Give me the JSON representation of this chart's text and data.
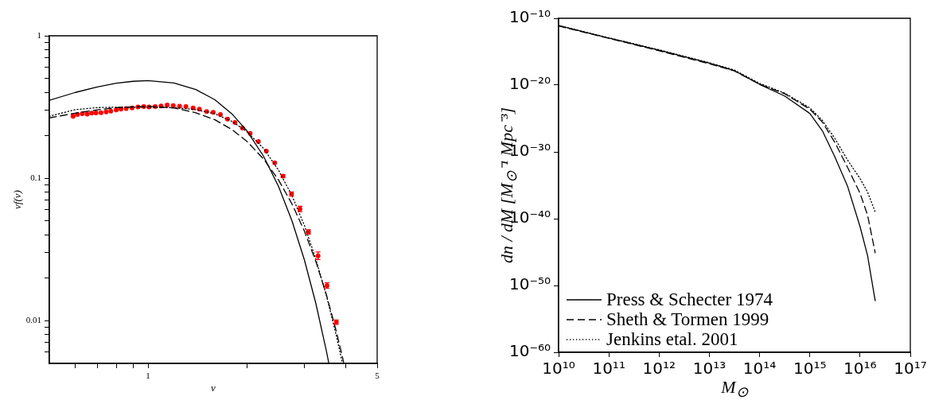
{
  "chart_data": [
    {
      "type": "line",
      "xlabel": "ν",
      "ylabel": "νf(ν)",
      "log": "xy",
      "grid": false,
      "legend": false,
      "marker": "none",
      "xlim": [
        0.5,
        5
      ],
      "xticks": [
        {
          "value": 0.6,
          "label": null
        },
        {
          "value": 0.7,
          "label": null
        },
        {
          "value": 0.8,
          "label": null
        },
        {
          "value": 0.9,
          "label": null
        },
        1,
        {
          "value": 2,
          "label": null
        },
        {
          "value": 3,
          "label": null
        },
        {
          "value": 4,
          "label": null
        },
        5
      ],
      "ylim": [
        0.005,
        1
      ],
      "yticks": [
        {
          "value": 0.006,
          "label": null
        },
        {
          "value": 0.007,
          "label": null
        },
        {
          "value": 0.008,
          "label": null
        },
        {
          "value": 0.009,
          "label": null
        },
        0.01,
        {
          "value": 0.02,
          "label": null
        },
        {
          "value": 0.03,
          "label": null
        },
        {
          "value": 0.04,
          "label": null
        },
        {
          "value": 0.05,
          "label": null
        },
        {
          "value": 0.06,
          "label": null
        },
        {
          "value": 0.07,
          "label": null
        },
        {
          "value": 0.08,
          "label": null
        },
        {
          "value": 0.09,
          "label": null
        },
        0.1,
        {
          "value": 0.2,
          "label": null
        },
        {
          "value": 0.3,
          "label": null
        },
        {
          "value": 0.4,
          "label": null
        },
        {
          "value": 0.5,
          "label": null
        },
        {
          "value": 0.6,
          "label": null
        },
        {
          "value": 0.7,
          "label": null
        },
        {
          "value": 0.8,
          "label": null
        },
        {
          "value": 0.9,
          "label": null
        },
        1
      ],
      "series": [
        {
          "type": "line",
          "color": "#000000",
          "line_style": "solid",
          "x": [
            0.5,
            0.6,
            0.7,
            0.8,
            0.9,
            1,
            1.2,
            1.4,
            1.6,
            1.8,
            2,
            2.25,
            2.5,
            2.75,
            3,
            3.25,
            3.5,
            3.56
          ],
          "values": [
            0.352,
            0.4,
            0.437,
            0.464,
            0.479,
            0.484,
            0.466,
            0.419,
            0.355,
            0.284,
            0.216,
            0.143,
            0.0877,
            0.05,
            0.0266,
            0.0132,
            0.00611,
            0.00502
          ]
        },
        {
          "type": "line",
          "color": "#000000",
          "line_style": "dashed",
          "x": [
            0.5,
            0.6,
            0.7,
            0.8,
            1,
            1.2,
            1.4,
            1.6,
            1.8,
            2,
            2.25,
            2.5,
            2.75,
            3,
            3.25,
            3.5,
            3.75,
            3.9,
            3.95
          ],
          "values": [
            0.265,
            0.286,
            0.302,
            0.313,
            0.32,
            0.311,
            0.288,
            0.257,
            0.22,
            0.182,
            0.1365,
            0.0973,
            0.0658,
            0.0424,
            0.026,
            0.0152,
            0.00844,
            0.0058,
            0.0051
          ]
        },
        {
          "type": "line",
          "color": "#000000",
          "line_style": "dotted",
          "x": [
            0.5,
            0.6,
            0.7,
            0.8,
            1,
            1.2,
            1.4,
            1.6,
            1.8,
            2,
            2.25,
            2.5,
            2.75,
            3,
            3.25,
            3.5,
            3.75,
            3.92
          ],
          "values": [
            0.272,
            0.303,
            0.313,
            0.315,
            0.315,
            0.313,
            0.303,
            0.283,
            0.251,
            0.213,
            0.162,
            0.114,
            0.0752,
            0.0465,
            0.0271,
            0.015,
            0.00791,
            0.005
          ]
        },
        {
          "type": "scatter",
          "color": "#ff0000",
          "marker": "circle",
          "x": [
            0.591,
            0.609,
            0.63,
            0.652,
            0.673,
            0.694,
            0.719,
            0.745,
            0.77,
            0.8,
            0.827,
            0.858,
            0.894,
            0.932,
            0.971,
            1.007,
            1.052,
            1.096,
            1.144,
            1.194,
            1.248,
            1.305,
            1.373,
            1.435,
            1.51,
            1.581,
            1.663,
            1.748,
            1.842,
            1.941,
            2.049,
            2.171,
            2.296,
            2.436,
            2.581,
            2.74,
            2.908,
            3.087,
            3.301,
            3.516,
            3.753
          ],
          "values": [
            0.272,
            0.28,
            0.284,
            0.282,
            0.286,
            0.287,
            0.288,
            0.292,
            0.296,
            0.301,
            0.305,
            0.308,
            0.311,
            0.316,
            0.318,
            0.316,
            0.318,
            0.321,
            0.327,
            0.324,
            0.32,
            0.318,
            0.311,
            0.305,
            0.294,
            0.29,
            0.28,
            0.26,
            0.246,
            0.225,
            0.206,
            0.181,
            0.155,
            0.128,
            0.1035,
            0.0773,
            0.0608,
            0.0419,
            0.0285,
            0.0176,
            0.00975
          ],
          "errors": [
            null,
            null,
            null,
            null,
            null,
            null,
            null,
            null,
            null,
            null,
            null,
            null,
            null,
            null,
            null,
            null,
            null,
            null,
            null,
            null,
            null,
            null,
            null,
            null,
            null,
            null,
            null,
            null,
            null,
            null,
            null,
            null,
            null,
            null,
            [
              0.101,
              0.106
            ],
            [
              0.0747,
              0.08
            ],
            [
              0.0582,
              0.0635
            ],
            [
              0.0405,
              0.0434
            ],
            [
              0.0268,
              0.0303
            ],
            [
              0.0168,
              0.0184
            ],
            [
              0.0094,
              0.0101
            ]
          ]
        }
      ]
    },
    {
      "type": "line",
      "xlabel": "M$_{⊙}$",
      "ylabel": "dn / dM  [M$_{⊙}$⁻¹ Mpc⁻³]",
      "log": "xy",
      "grid": false,
      "legend": "bottom left",
      "marker": "none",
      "xlim": [
        10000000000.0,
        1e+17
      ],
      "xticks": [
        {
          "value": 10000000000.0,
          "label": "10¹⁰"
        },
        {
          "value": 100000000000.0,
          "label": "10¹¹"
        },
        {
          "value": 1000000000000.0,
          "label": "10¹²"
        },
        {
          "value": 10000000000000.0,
          "label": "10¹³"
        },
        {
          "value": 100000000000000.0,
          "label": "10¹⁴"
        },
        {
          "value": 1000000000000000.0,
          "label": "10¹⁵"
        },
        {
          "value": 1e+16,
          "label": "10¹⁶"
        },
        {
          "value": 1e+17,
          "label": "10¹⁷"
        }
      ],
      "ylim": [
        1e-60,
        1e-10
      ],
      "yticks": [
        {
          "value": 1e-60,
          "label": "10⁻⁶⁰"
        },
        {
          "value": 1e-50,
          "label": "10⁻⁵⁰"
        },
        {
          "value": 1e-40,
          "label": "10⁻⁴⁰"
        },
        {
          "value": 1e-30,
          "label": "10⁻³⁰"
        },
        {
          "value": 1e-20,
          "label": "10⁻²⁰"
        },
        {
          "value": 1e-10,
          "label": "10⁻¹⁰"
        }
      ],
      "x": [
        10000000000.0,
        100000000000.0,
        1000000000000.0,
        10000000000000.0,
        31600000000000.0,
        100000000000000.0,
        316000000000000.0,
        1000000000000000.0,
        1780000000000000.0,
        3160000000000000.0,
        5620000000000000.0,
        1e+16,
        1.41e+16,
        2e+16
      ],
      "series": [
        {
          "name": "Press & Schecter 1974",
          "color": "#000000",
          "line_style": "solid",
          "values": [
            8.1e-12,
            1.1e-13,
            1.7e-15,
            1.9e-17,
            1.4e-18,
            1.3e-20,
            2.3e-22,
            5.6e-25,
            1.4e-27,
            1.7e-31,
            7.8e-36,
            6.5e-42,
            3e-46,
            5.4e-53
          ]
        },
        {
          "name": "Sheth & Tormen 1999",
          "color": "#000000",
          "line_style": "dashed",
          "values": [
            7.1e-12,
            1e-13,
            1.4e-15,
            1.6e-17,
            1.3e-18,
            1.4e-20,
            5e-22,
            2.5e-24,
            2.8e-26,
            2.5e-29,
            5e-33,
            6.3e-37,
            3.5e-40,
            7.9e-46
          ]
        },
        {
          "name": "Jenkins etal. 2001",
          "color": "#000000",
          "line_style": "dotted",
          "values": [
            8.1e-12,
            1.2e-13,
            1.9e-15,
            2.2e-17,
            1.8e-18,
            1.8e-20,
            6.3e-22,
            4e-24,
            5e-26,
            1e-28,
            6.3e-32,
            1e-34,
            1e-36,
            1e-39
          ]
        }
      ]
    }
  ]
}
